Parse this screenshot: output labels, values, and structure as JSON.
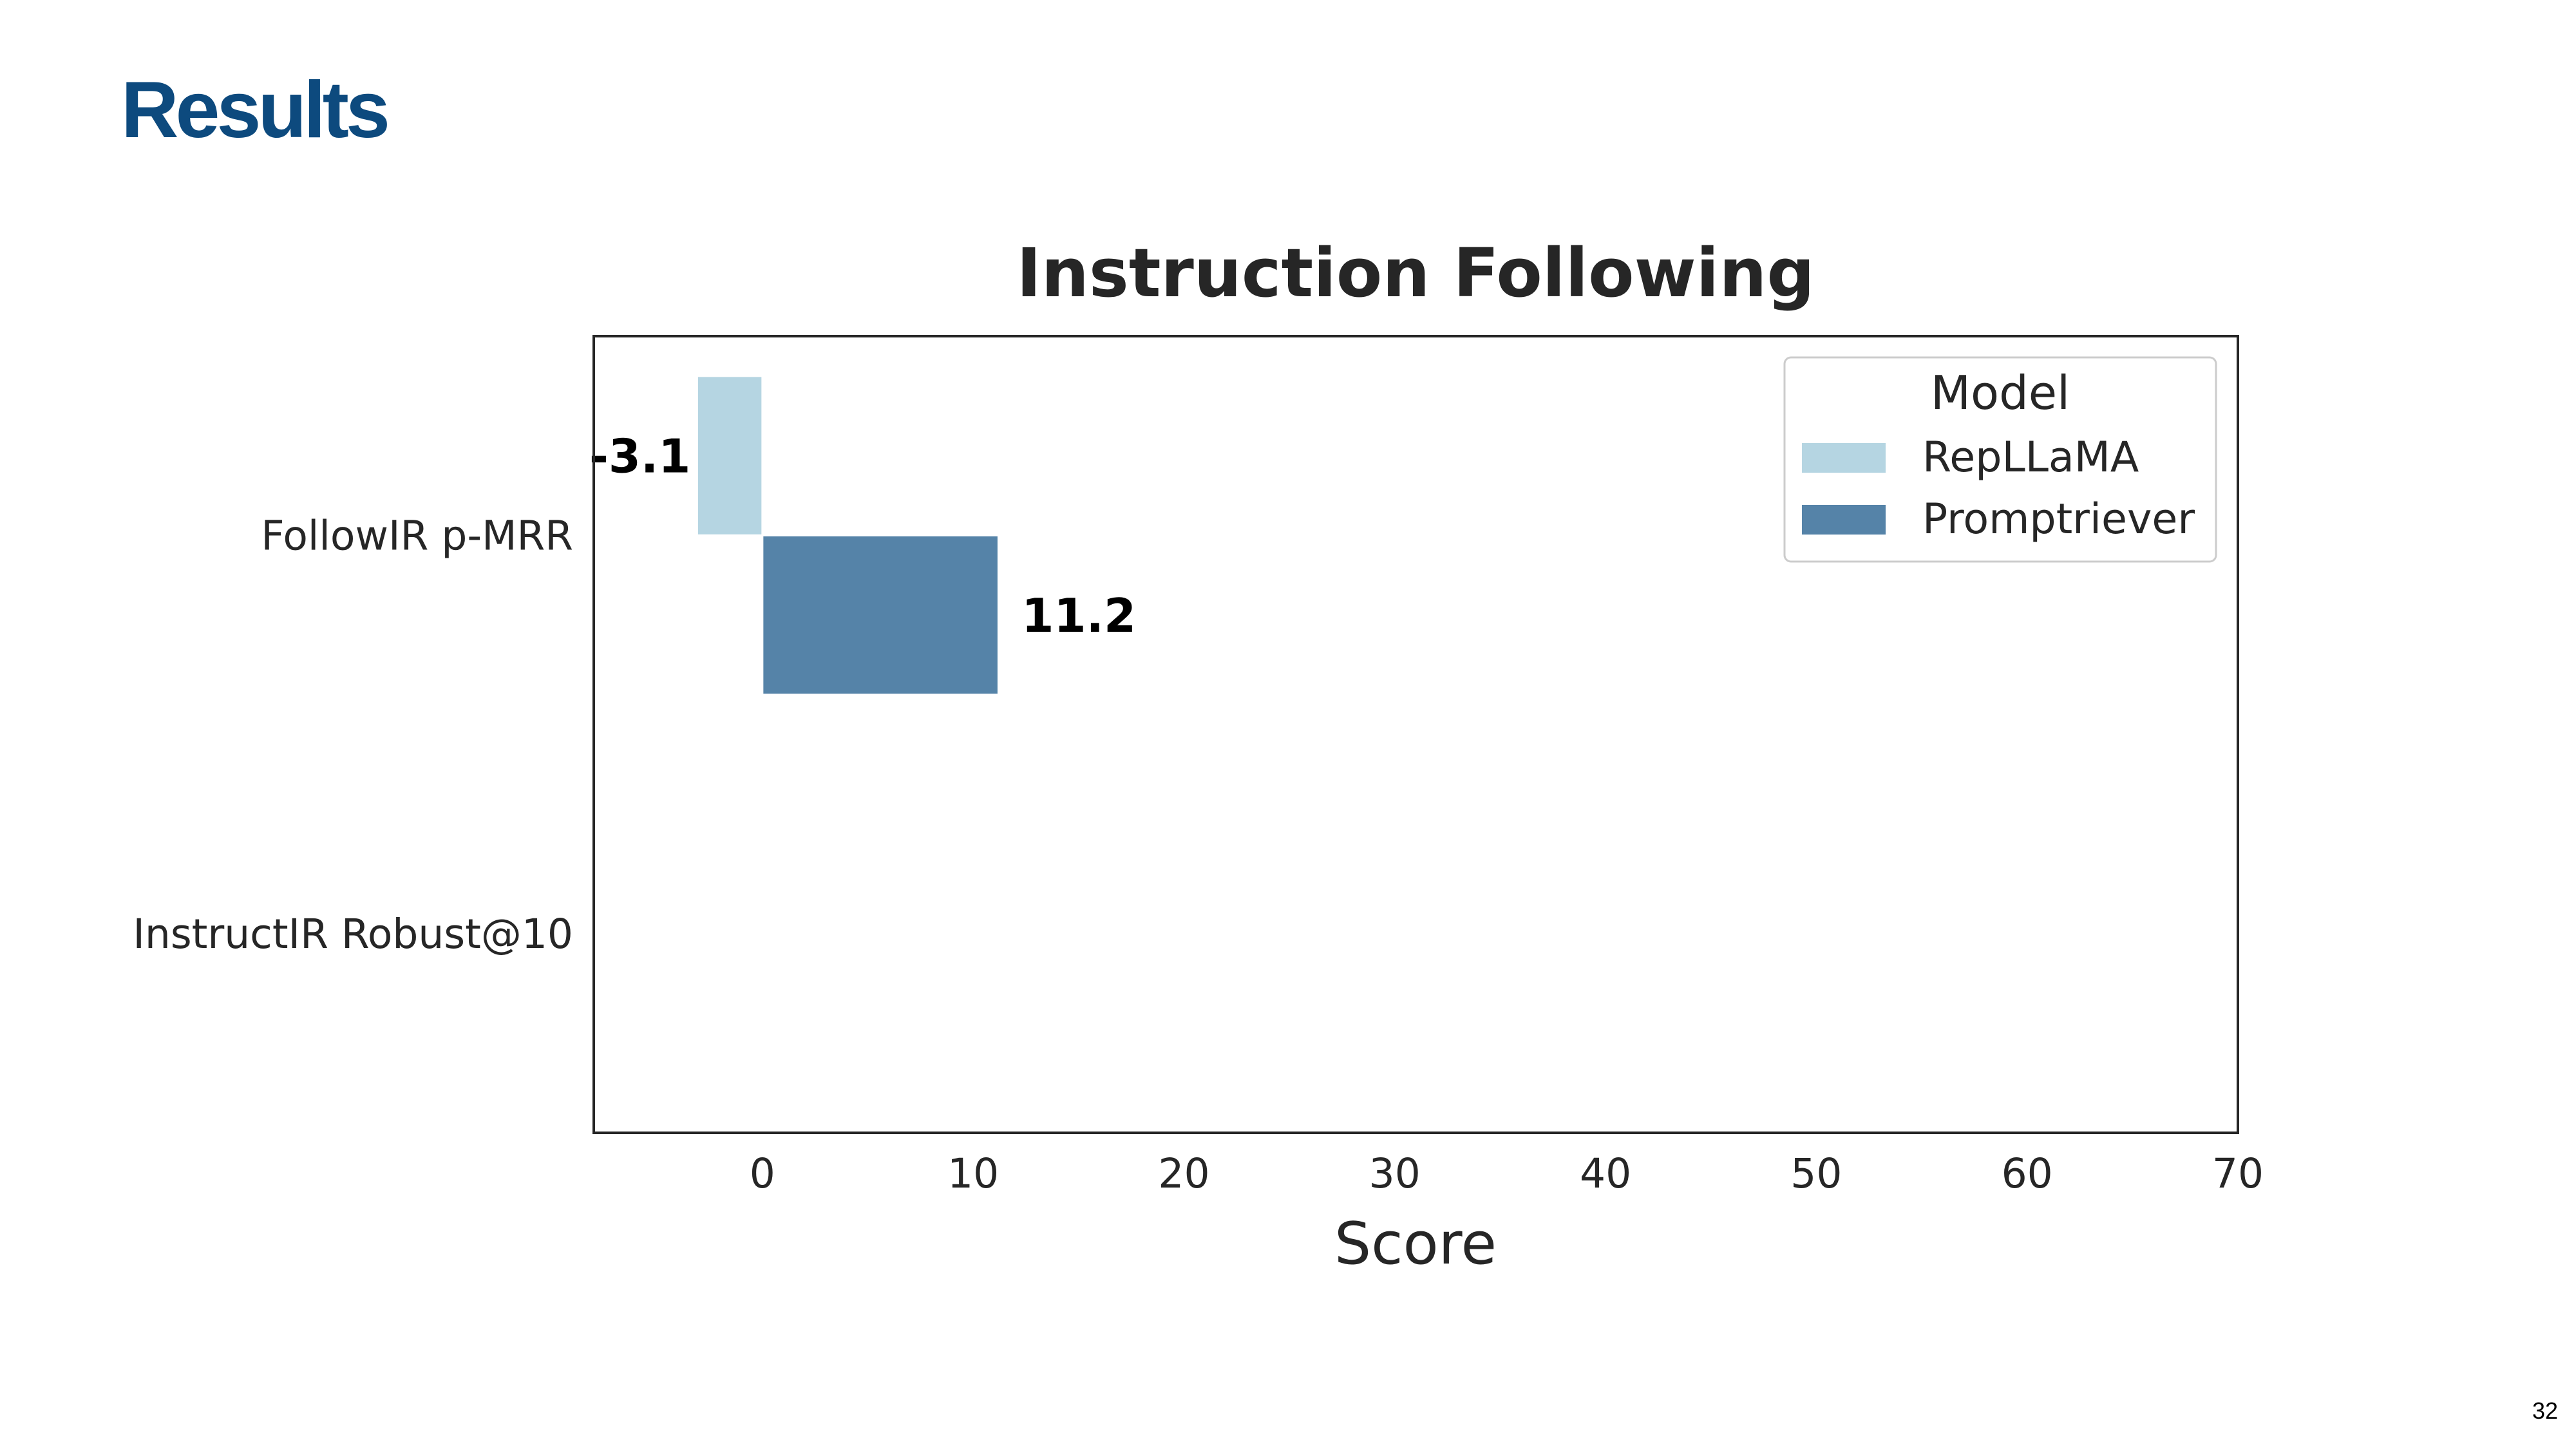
{
  "slide": {
    "title": "Results",
    "page_number": "32"
  },
  "chart_data": {
    "type": "bar",
    "orientation": "horizontal",
    "title": "Instruction Following",
    "xlabel": "Score",
    "ylabel": "",
    "categories": [
      "FollowIR p-MRR",
      "InstructIR Robust@10"
    ],
    "xlim": [
      -8,
      70
    ],
    "xticks": [
      0,
      10,
      20,
      30,
      40,
      50,
      60,
      70
    ],
    "grid": false,
    "legend": {
      "title": "Model",
      "placement": "top-right",
      "entries": [
        "RepLLaMA",
        "Promptriever"
      ]
    },
    "series": [
      {
        "name": "RepLLaMA",
        "color": "#b5d5e2",
        "values": [
          -3.1,
          null
        ],
        "labels": [
          "-3.1",
          ""
        ]
      },
      {
        "name": "Promptriever",
        "color": "#5583a8",
        "values": [
          11.2,
          null
        ],
        "labels": [
          "11.2",
          ""
        ]
      }
    ]
  }
}
